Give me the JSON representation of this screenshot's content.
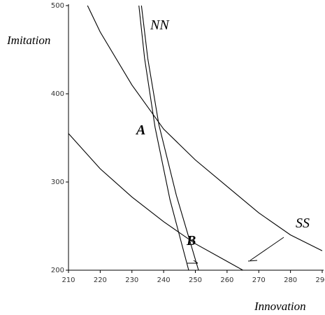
{
  "chart_data": {
    "type": "line",
    "x_label": "Innovation",
    "y_label": "Imitation",
    "annotations": [
      "NN",
      "SS",
      "A",
      "B"
    ],
    "xlim": [
      210,
      290
    ],
    "ylim": [
      200,
      500
    ],
    "xticks": [
      210,
      220,
      230,
      240,
      250,
      260,
      270,
      280,
      290
    ],
    "yticks": [
      200,
      300,
      400,
      500
    ],
    "series": [
      {
        "color": "#000000",
        "x": [
          216,
          220,
          230,
          240,
          250,
          260,
          270,
          280,
          290
        ],
        "values": [
          500,
          470,
          410,
          360,
          325,
          295,
          265,
          240,
          222
        ]
      },
      {
        "color": "#000000",
        "x": [
          210,
          220,
          230,
          240,
          250,
          260,
          265
        ],
        "values": [
          355,
          315,
          283,
          255,
          230,
          210,
          200
        ]
      },
      {
        "color": "#000000",
        "x": [
          232.2,
          234,
          237.3,
          242,
          247.9
        ],
        "values": [
          500,
          440,
          362,
          280,
          200
        ]
      },
      {
        "color": "#000000",
        "x": [
          233,
          235,
          238.5,
          244,
          251
        ],
        "values": [
          500,
          440,
          365,
          285,
          200
        ]
      }
    ]
  }
}
